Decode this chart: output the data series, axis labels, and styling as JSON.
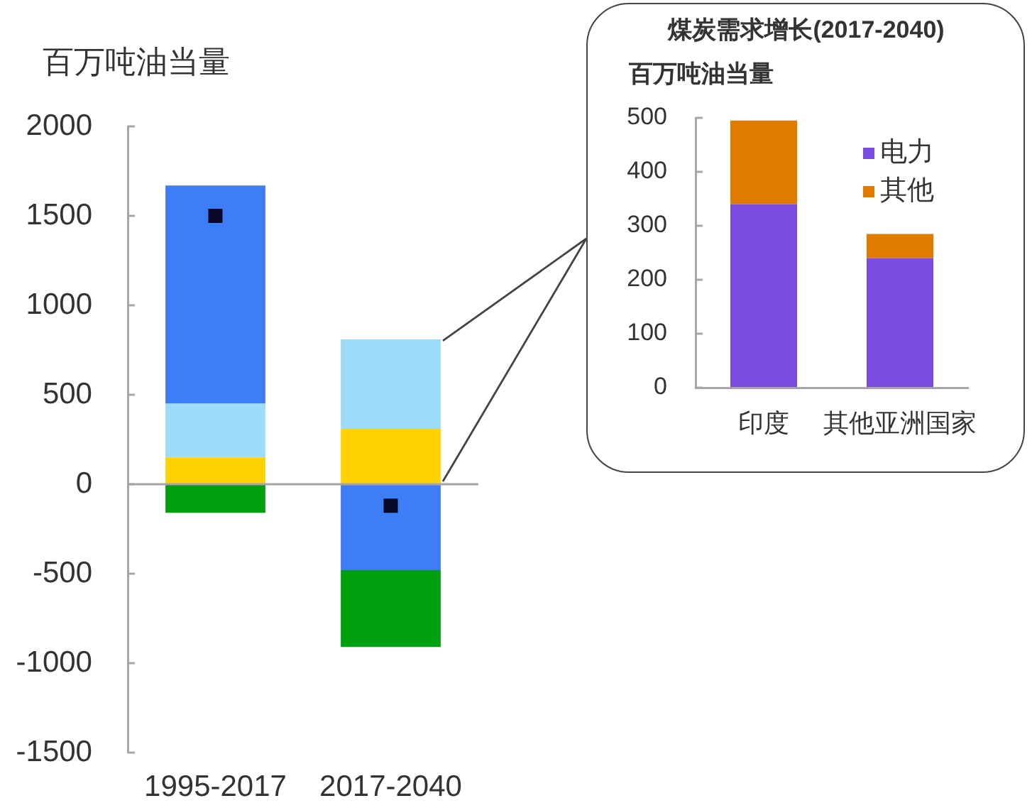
{
  "chart_data": [
    {
      "type": "bar",
      "ylabel": "百万吨油当量",
      "categories": [
        "1995-2017",
        "2017-2040"
      ],
      "series": [
        {
          "color": "#ffd200",
          "values": [
            150,
            310
          ]
        },
        {
          "color": "#9ddcf9",
          "values": [
            300,
            500
          ]
        },
        {
          "color": "#3d7ef6",
          "values": [
            1220,
            -480
          ]
        },
        {
          "color": "#00a010",
          "values": [
            -160,
            -430
          ]
        },
        {
          "type": "scatter",
          "color": "#0a0a28",
          "marker": "square",
          "x": [
            "1995-2017",
            "2017-2040"
          ],
          "values": [
            1500,
            -120
          ]
        }
      ],
      "stacked": true,
      "ylim": [
        -1500,
        2000
      ],
      "yticks": [
        -1500,
        -1000,
        -500,
        0,
        500,
        1000,
        1500,
        2000
      ],
      "ref_lines": [
        {
          "axis": "y",
          "value": 0,
          "color": "#a6a6a6"
        }
      ],
      "grid": false,
      "legend": false
    },
    {
      "type": "bar",
      "title": "煤炭需求增长(2017-2040)",
      "ylabel": "百万吨油当量",
      "categories": [
        "印度",
        "其他亚洲国家"
      ],
      "series": [
        {
          "name": "电力",
          "color": "#7a4de0",
          "values": [
            340,
            240
          ]
        },
        {
          "name": "其他",
          "color": "#e07b00",
          "values": [
            155,
            45
          ]
        }
      ],
      "stacked": true,
      "ylim": [
        0,
        500
      ],
      "yticks": [
        0,
        100,
        200,
        300,
        400,
        500
      ],
      "grid": false,
      "legend": "top right"
    }
  ]
}
